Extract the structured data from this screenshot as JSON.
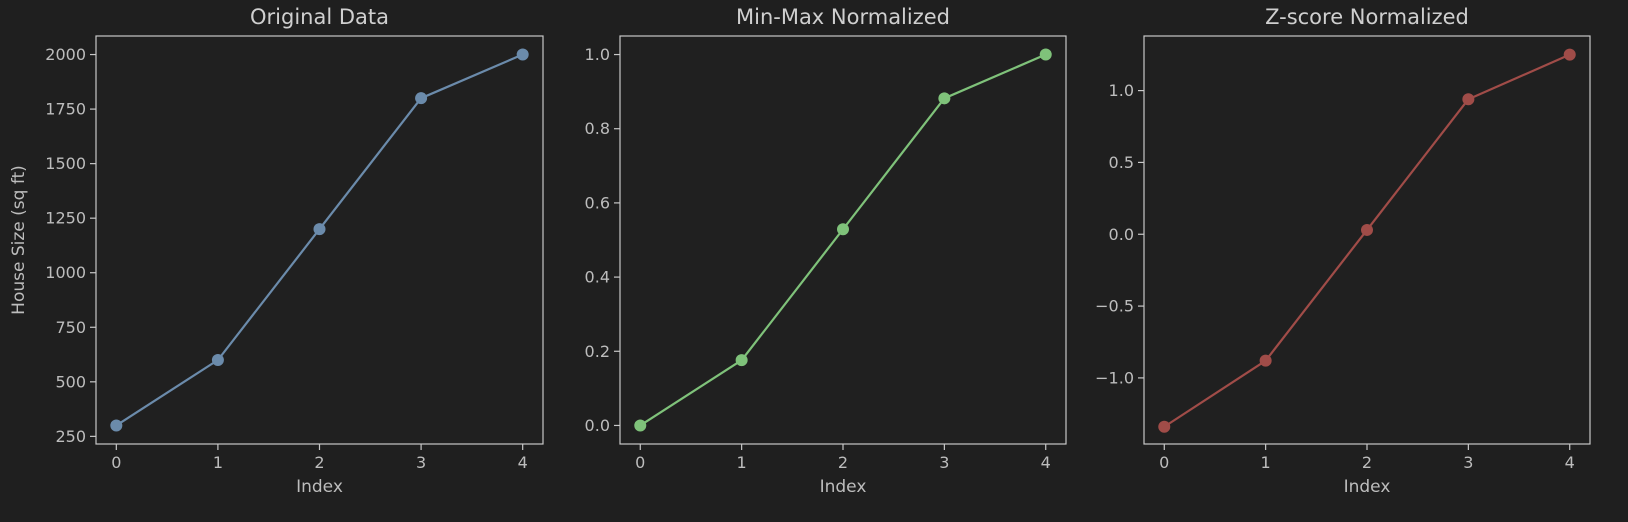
{
  "chart_data": [
    {
      "type": "line",
      "title": "Original Data",
      "xlabel": "Index",
      "ylabel": "House Size (sq ft)",
      "x": [
        0,
        1,
        2,
        3,
        4
      ],
      "xticks": [
        0,
        1,
        2,
        3,
        4
      ],
      "xlim": [
        -0.2,
        4.2
      ],
      "yticks": [
        250,
        500,
        750,
        1000,
        1250,
        1500,
        1750,
        2000
      ],
      "ylim": [
        215,
        2085
      ],
      "series": [
        {
          "values": [
            300,
            600,
            1200,
            1800,
            2000
          ],
          "color": "#6b8bab"
        }
      ],
      "grid": false
    },
    {
      "type": "line",
      "title": "Min-Max Normalized",
      "xlabel": "Index",
      "ylabel": "",
      "x": [
        0,
        1,
        2,
        3,
        4
      ],
      "xticks": [
        0,
        1,
        2,
        3,
        4
      ],
      "xlim": [
        -0.2,
        4.2
      ],
      "yticks": [
        "0.0",
        "0.2",
        "0.4",
        "0.6",
        "0.8",
        "1.0"
      ],
      "ylim": [
        -0.05,
        1.05
      ],
      "series": [
        {
          "values": [
            0.0,
            0.176,
            0.529,
            0.882,
            1.0
          ],
          "color": "#7fc27a"
        }
      ],
      "grid": false
    },
    {
      "type": "line",
      "title": "Z-score Normalized",
      "xlabel": "Index",
      "ylabel": "",
      "x": [
        0,
        1,
        2,
        3,
        4
      ],
      "xticks": [
        0,
        1,
        2,
        3,
        4
      ],
      "xlim": [
        -0.2,
        4.2
      ],
      "yticks": [
        "−1.0",
        "−0.5",
        "0.0",
        "0.5",
        "1.0"
      ],
      "ylim": [
        -1.46,
        1.38
      ],
      "series": [
        {
          "values": [
            -1.34,
            -0.88,
            0.03,
            0.94,
            1.25
          ],
          "color": "#a04c48"
        }
      ],
      "grid": false
    }
  ]
}
